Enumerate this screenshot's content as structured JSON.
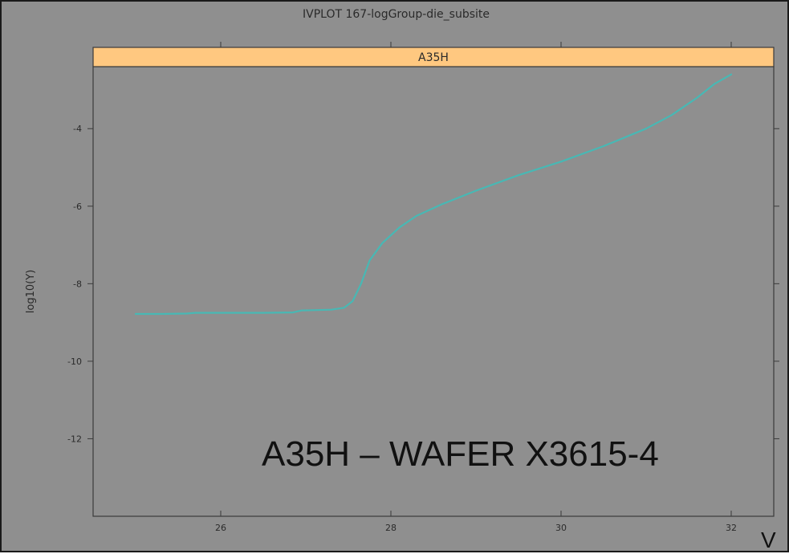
{
  "chart_data": {
    "type": "line",
    "title": "IVPLOT 167-logGroup-die_subsite",
    "panel_label": "A35H",
    "ylabel": "log10(Y)",
    "xlabel": "",
    "x_unit_label": "V",
    "annotation": "A35H – WAFER X3615-4",
    "xlim": [
      24.5,
      32.5
    ],
    "ylim": [
      -14,
      -2.4
    ],
    "x_ticks": [
      26,
      28,
      30,
      32
    ],
    "y_ticks": [
      -4,
      -6,
      -8,
      -10,
      -12
    ],
    "grid": false,
    "series": [
      {
        "color": "#48b8b4",
        "x": [
          25.0,
          25.3,
          25.6,
          25.7,
          26.0,
          26.5,
          26.85,
          26.95,
          27.3,
          27.45,
          27.55,
          27.65,
          27.75,
          27.9,
          28.1,
          28.3,
          28.6,
          29.0,
          29.5,
          30.0,
          30.5,
          31.0,
          31.3,
          31.6,
          31.8,
          32.0
        ],
        "y": [
          -8.78,
          -8.78,
          -8.77,
          -8.75,
          -8.75,
          -8.75,
          -8.74,
          -8.69,
          -8.67,
          -8.62,
          -8.45,
          -8.0,
          -7.4,
          -6.95,
          -6.55,
          -6.25,
          -5.95,
          -5.6,
          -5.2,
          -4.85,
          -4.45,
          -4.0,
          -3.65,
          -3.2,
          -2.85,
          -2.6
        ]
      }
    ]
  }
}
